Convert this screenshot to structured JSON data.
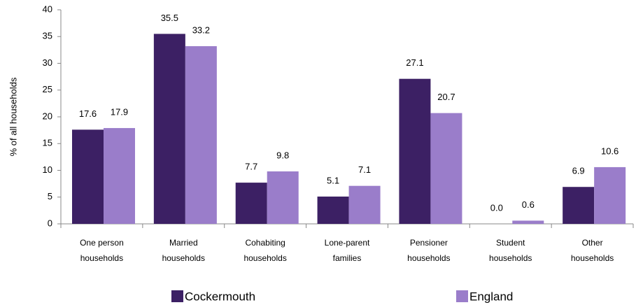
{
  "chart_data": {
    "type": "bar",
    "ylabel": "% of all households",
    "categories": [
      [
        "One person",
        "households"
      ],
      [
        "Married",
        "households"
      ],
      [
        "Cohabiting",
        "households"
      ],
      [
        "Lone-parent",
        "families"
      ],
      [
        "Pensioner",
        "households"
      ],
      [
        "Student",
        "households"
      ],
      [
        "Other",
        "households"
      ]
    ],
    "series": [
      {
        "name": "Cockermouth",
        "color": "#3c2064",
        "values": [
          17.6,
          35.5,
          7.7,
          5.1,
          27.1,
          0,
          6.9
        ],
        "value_labels": [
          "17.6",
          "35.5",
          "7.7",
          "5.1",
          "27.1",
          "0.0",
          "6.9"
        ]
      },
      {
        "name": "England",
        "color": "#9a7dca",
        "values": [
          17.9,
          33.2,
          9.8,
          7.1,
          20.7,
          0.6,
          10.6
        ]
      }
    ],
    "ylim": [
      0,
      40
    ],
    "yticks": [
      0,
      5,
      10,
      15,
      20,
      25,
      30,
      35,
      40
    ],
    "grid": false,
    "legend": "bottom"
  }
}
